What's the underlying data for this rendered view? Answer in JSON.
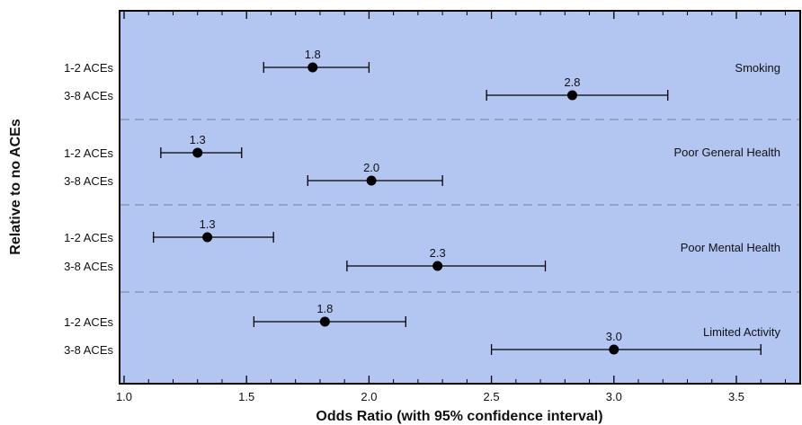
{
  "chart_data": {
    "type": "forest",
    "xlabel": "Odds Ratio (with 95% confidence interval)",
    "ylabel": "Relative to no ACEs",
    "xlim": [
      1.0,
      3.8
    ],
    "xticks": [
      1.0,
      1.5,
      2.0,
      2.5,
      3.0,
      3.5
    ],
    "xtick_labels": [
      "1.0",
      "1.5",
      "2.0",
      "2.5",
      "3.0",
      "3.5"
    ],
    "grid": false,
    "background_color": "#b3c6f2",
    "separator_color": "#8a98b8",
    "point_color": "#000000",
    "groups": [
      {
        "label": "Smoking",
        "rows": [
          {
            "category": "1-2 ACEs",
            "or": 1.77,
            "ci_low": 1.57,
            "ci_high": 2.0,
            "value_label": "1.8"
          },
          {
            "category": "3-8 ACEs",
            "or": 2.83,
            "ci_low": 2.48,
            "ci_high": 3.22,
            "value_label": "2.8"
          }
        ]
      },
      {
        "label": "Poor General Health",
        "rows": [
          {
            "category": "1-2 ACEs",
            "or": 1.3,
            "ci_low": 1.15,
            "ci_high": 1.48,
            "value_label": "1.3"
          },
          {
            "category": "3-8 ACEs",
            "or": 2.01,
            "ci_low": 1.75,
            "ci_high": 2.3,
            "value_label": "2.0"
          }
        ]
      },
      {
        "label": "Poor Mental Health",
        "rows": [
          {
            "category": "1-2 ACEs",
            "or": 1.34,
            "ci_low": 1.12,
            "ci_high": 1.61,
            "value_label": "1.3"
          },
          {
            "category": "3-8 ACEs",
            "or": 2.28,
            "ci_low": 1.91,
            "ci_high": 2.72,
            "value_label": "2.3"
          }
        ]
      },
      {
        "label": "Limited Activity",
        "rows": [
          {
            "category": "1-2 ACEs",
            "or": 1.82,
            "ci_low": 1.53,
            "ci_high": 2.15,
            "value_label": "1.8"
          },
          {
            "category": "3-8 ACEs",
            "or": 3.0,
            "ci_low": 2.5,
            "ci_high": 3.6,
            "value_label": "3.0"
          }
        ]
      }
    ]
  }
}
